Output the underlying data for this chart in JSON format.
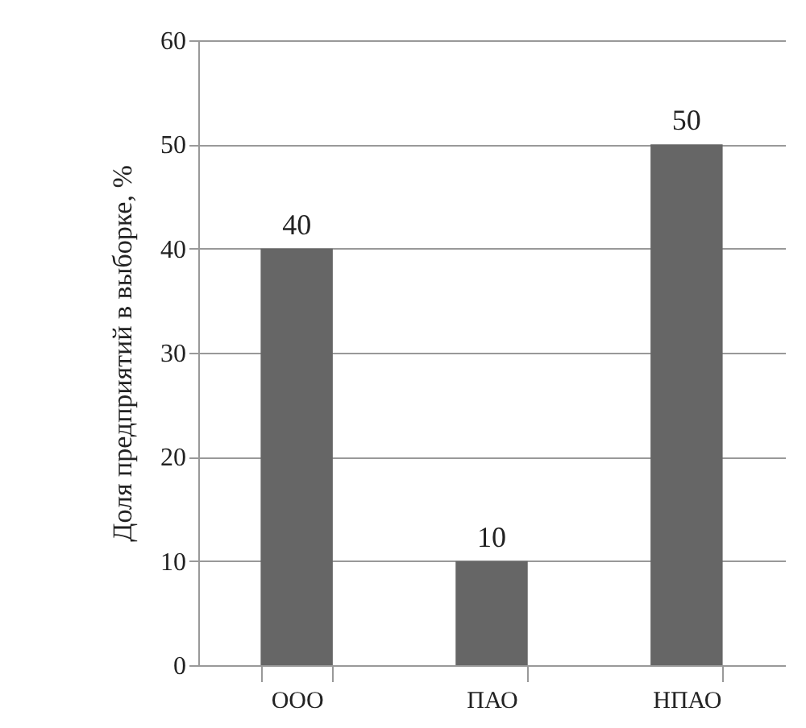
{
  "chart_data": {
    "type": "bar",
    "ylabel": "Доля предприятий в выборке, %",
    "categories": [
      "ООО",
      "ПАО",
      "НПАО"
    ],
    "values": [
      40,
      10,
      50
    ],
    "color": "#666666",
    "ylim": [
      0,
      60
    ],
    "yticks": [
      0,
      10,
      20,
      30,
      40,
      50,
      60
    ],
    "grid": "y",
    "data_labels": true
  }
}
